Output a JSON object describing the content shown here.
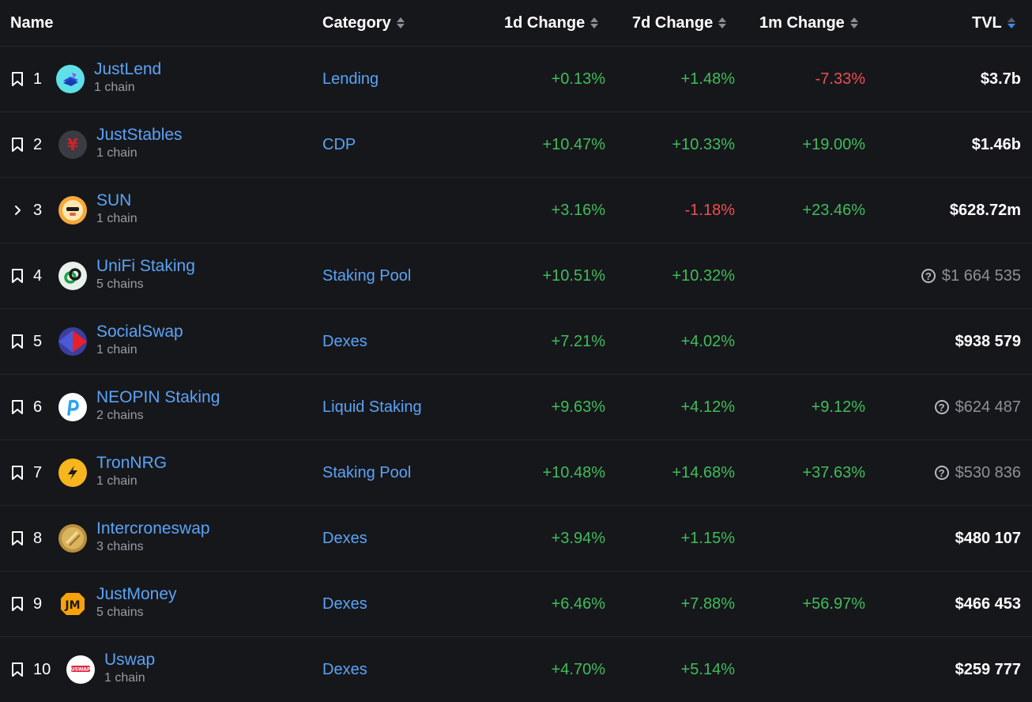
{
  "header": {
    "name": "Name",
    "category": "Category",
    "change_1d": "1d Change",
    "change_7d": "7d Change",
    "change_1m": "1m Change",
    "tvl": "TVL"
  },
  "colors": {
    "background": "#16171b",
    "link": "#5ba3f5",
    "positive": "#3fbd5a",
    "negative": "#ee4f4f",
    "sort_active": "#3f87f5"
  },
  "rows": [
    {
      "rank": "1",
      "name": "JustLend",
      "chains": "1 chain",
      "category": "Lending",
      "d1": "+0.13%",
      "d7": "+1.48%",
      "m1": "-7.33%",
      "tvl": "$3.7b",
      "tvl_uncertain": false,
      "expandable": false,
      "logo_icon": "justlend-logo-icon"
    },
    {
      "rank": "2",
      "name": "JustStables",
      "chains": "1 chain",
      "category": "CDP",
      "d1": "+10.47%",
      "d7": "+10.33%",
      "m1": "+19.00%",
      "tvl": "$1.46b",
      "tvl_uncertain": false,
      "expandable": false,
      "logo_icon": "juststables-logo-icon"
    },
    {
      "rank": "3",
      "name": "SUN",
      "chains": "1 chain",
      "category": "",
      "d1": "+3.16%",
      "d7": "-1.18%",
      "m1": "+23.46%",
      "tvl": "$628.72m",
      "tvl_uncertain": false,
      "expandable": true,
      "logo_icon": "sun-logo-icon"
    },
    {
      "rank": "4",
      "name": "UniFi Staking",
      "chains": "5 chains",
      "category": "Staking Pool",
      "d1": "+10.51%",
      "d7": "+10.32%",
      "m1": "",
      "tvl": "$1 664 535",
      "tvl_uncertain": true,
      "expandable": false,
      "logo_icon": "unifi-logo-icon"
    },
    {
      "rank": "5",
      "name": "SocialSwap",
      "chains": "1 chain",
      "category": "Dexes",
      "d1": "+7.21%",
      "d7": "+4.02%",
      "m1": "",
      "tvl": "$938 579",
      "tvl_uncertain": false,
      "expandable": false,
      "logo_icon": "socialswap-logo-icon"
    },
    {
      "rank": "6",
      "name": "NEOPIN Staking",
      "chains": "2 chains",
      "category": "Liquid Staking",
      "d1": "+9.63%",
      "d7": "+4.12%",
      "m1": "+9.12%",
      "tvl": "$624 487",
      "tvl_uncertain": true,
      "expandable": false,
      "logo_icon": "neopin-logo-icon"
    },
    {
      "rank": "7",
      "name": "TronNRG",
      "chains": "1 chain",
      "category": "Staking Pool",
      "d1": "+10.48%",
      "d7": "+14.68%",
      "m1": "+37.63%",
      "tvl": "$530 836",
      "tvl_uncertain": true,
      "expandable": false,
      "logo_icon": "tronnrg-logo-icon"
    },
    {
      "rank": "8",
      "name": "Intercroneswap",
      "chains": "3 chains",
      "category": "Dexes",
      "d1": "+3.94%",
      "d7": "+1.15%",
      "m1": "",
      "tvl": "$480 107",
      "tvl_uncertain": false,
      "expandable": false,
      "logo_icon": "intercroneswap-logo-icon"
    },
    {
      "rank": "9",
      "name": "JustMoney",
      "chains": "5 chains",
      "category": "Dexes",
      "d1": "+6.46%",
      "d7": "+7.88%",
      "m1": "+56.97%",
      "tvl": "$466 453",
      "tvl_uncertain": false,
      "expandable": false,
      "logo_icon": "justmoney-logo-icon"
    },
    {
      "rank": "10",
      "name": "Uswap",
      "chains": "1 chain",
      "category": "Dexes",
      "d1": "+4.70%",
      "d7": "+5.14%",
      "m1": "",
      "tvl": "$259 777",
      "tvl_uncertain": false,
      "expandable": false,
      "logo_icon": "uswap-logo-icon"
    }
  ]
}
